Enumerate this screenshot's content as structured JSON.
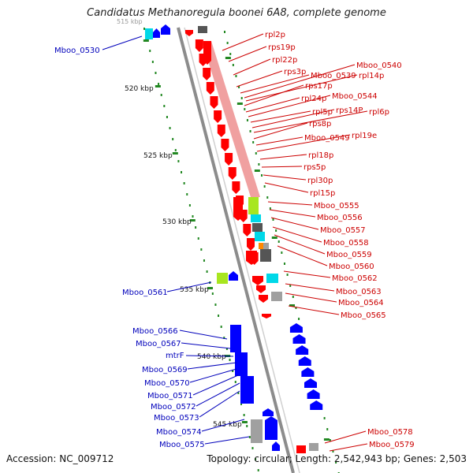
{
  "title": "Candidatus Methanoregula boonei 6A8, complete genome",
  "accession": "Accession: NC_009712",
  "summary": "Topology: circular; Length: 2,542,943 bp; Genes: 2,503",
  "colors": {
    "backbone": "#8c8c8c",
    "ribosomal_band": "#f0a0a0",
    "red_gene": "#ff0000",
    "blue_gene": "#0000ff",
    "cyan_gene": "#00d8e8",
    "green_gene": "#a8e620",
    "gray_gene": "#a0a0a0",
    "dark_gene": "#555555",
    "orange_gene": "#ff8800",
    "tick": "#228822",
    "red_label": "#cc0000",
    "blue_label": "#0000bb"
  },
  "ticks": [
    "515 kbp",
    "520 kbp",
    "525 kbp",
    "530 kbp",
    "535 kbp",
    "540 kbp",
    "545 kbp"
  ],
  "right_labels": [
    "rpl2p",
    "rps19p",
    "rpl22p",
    "rps3p",
    "Mboo_0539",
    "Mboo_0540",
    "rpl14p",
    "rps17p",
    "rpl24p",
    "Mboo_0544",
    "rpl5p",
    "rps14P",
    "rpl6p",
    "rps8p",
    "Mboo_0549",
    "rpl19e",
    "rpl18p",
    "rps5p",
    "rpl30p",
    "rpl15p",
    "Mboo_0555",
    "Mboo_0556",
    "Mboo_0557",
    "Mboo_0558",
    "Mboo_0559",
    "Mboo_0560",
    "Mboo_0562",
    "Mboo_0563",
    "Mboo_0564",
    "Mboo_0565",
    "Mboo_0578",
    "Mboo_0579"
  ],
  "left_labels": [
    "Mboo_0530",
    "Mboo_0561",
    "Mboo_0566",
    "Mboo_0567",
    "mtrF",
    "Mboo_0569",
    "Mboo_0570",
    "Mboo_0571",
    "Mboo_0572",
    "Mboo_0573",
    "Mboo_0574",
    "Mboo_0575"
  ]
}
